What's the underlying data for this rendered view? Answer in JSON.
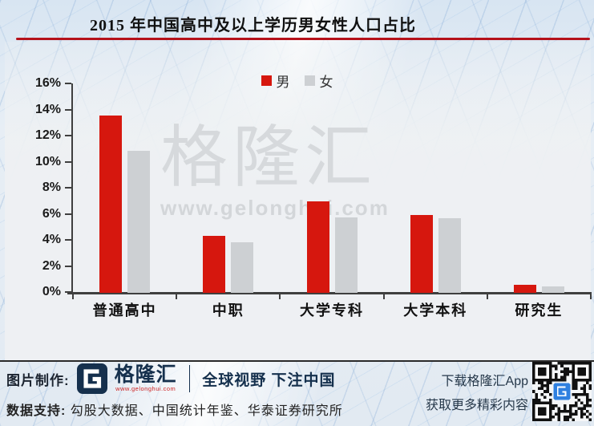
{
  "header": {
    "title": "2015 年中国高中及以上学历男女性人口占比"
  },
  "chart_data": {
    "type": "bar",
    "title": "2015 年中国高中及以上学历男女性人口占比",
    "categories": [
      "普通高中",
      "中职",
      "大学专科",
      "大学本科",
      "研究生"
    ],
    "series": [
      {
        "name": "男",
        "color": "#d6170e",
        "values": [
          13.6,
          4.4,
          7.0,
          6.0,
          0.6
        ]
      },
      {
        "name": "女",
        "color": "#cdd0d3",
        "values": [
          10.9,
          3.9,
          5.8,
          5.7,
          0.5
        ]
      }
    ],
    "xlabel": "",
    "ylabel": "",
    "ylim": [
      0,
      16
    ],
    "yticks": [
      0,
      2,
      4,
      6,
      8,
      10,
      12,
      14,
      16
    ],
    "ytick_labels": [
      "0%",
      "2%",
      "4%",
      "6%",
      "8%",
      "10%",
      "12%",
      "14%",
      "16%"
    ],
    "legend_position": "top-center",
    "grid": false,
    "value_unit": "percent"
  },
  "watermark": {
    "brand": "格隆汇",
    "url": "www.gelonghui.com"
  },
  "footer": {
    "made_by_label": "图片制作:",
    "logo_text": "格隆汇",
    "logo_url": "www.gelonghui.com",
    "slogan": "全球视野 下注中国",
    "data_support_label": "数据支持:",
    "data_support_text": "勾股大数据、中国统计年鉴、华泰证券研究所",
    "qr_caption_line1": "下载格隆汇App",
    "qr_caption_line2": "获取更多精彩内容"
  },
  "colors": {
    "male_bar": "#d6170e",
    "female_bar": "#cdd0d3",
    "title_underline": "#b5121b",
    "navy": "#15304d",
    "axis": "#3f3f3f",
    "qr_logo_blue": "#2f80e0"
  }
}
